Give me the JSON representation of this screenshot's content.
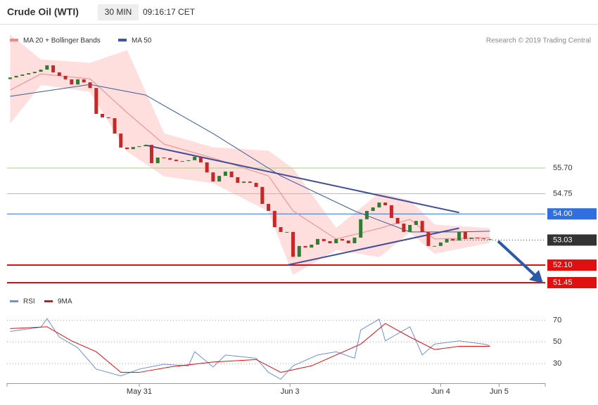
{
  "header": {
    "title": "Crude Oil (WTI)",
    "interval": "30 MIN",
    "time": "09:16:17 CET",
    "credit": "Research © 2019 Trading Central"
  },
  "chart_data": [
    {
      "type": "candlestick",
      "ylim": [
        50.98,
        60.89
      ],
      "xlim": [
        -0.5,
        87
      ],
      "up_color": "#2e7d32",
      "down_color": "#c62828",
      "open": [
        59.0,
        59.06,
        59.12,
        59.17,
        59.22,
        59.27,
        59.35,
        59.51,
        59.25,
        59.12,
        58.99,
        58.8,
        58.99,
        58.88,
        58.67,
        57.71,
        57.58,
        57.55,
        56.98,
        56.46,
        56.4,
        56.48,
        56.51,
        56.56,
        55.88,
        56.09,
        56.07,
        56.01,
        55.96,
        55.96,
        55.99,
        56.12,
        55.91,
        55.54,
        55.2,
        55.41,
        55.57,
        55.36,
        55.15,
        55.2,
        55.15,
        55.0,
        54.37,
        54.11,
        53.51,
        53.33,
        53.33,
        52.41,
        52.81,
        52.75,
        52.86,
        53.07,
        52.99,
        52.91,
        53.07,
        53.01,
        52.91,
        53.12,
        53.8,
        54.11,
        54.24,
        54.42,
        54.32,
        53.85,
        53.64,
        53.33,
        53.59,
        53.74,
        53.33,
        52.81,
        52.81,
        52.94,
        53.07,
        53.01,
        53.33,
        53.07,
        53.12,
        53.09,
        53.07
      ],
      "close": [
        59.06,
        59.12,
        59.17,
        59.22,
        59.27,
        59.35,
        59.51,
        59.25,
        59.12,
        58.99,
        58.8,
        58.99,
        58.88,
        58.67,
        57.71,
        57.58,
        57.55,
        56.98,
        56.46,
        56.4,
        56.48,
        56.51,
        56.56,
        55.88,
        56.09,
        56.07,
        56.01,
        55.96,
        55.96,
        55.99,
        56.12,
        55.91,
        55.54,
        55.2,
        55.41,
        55.57,
        55.36,
        55.15,
        55.2,
        55.15,
        55.0,
        54.37,
        54.11,
        53.51,
        53.33,
        53.33,
        52.41,
        52.81,
        52.75,
        52.86,
        53.07,
        52.99,
        52.91,
        53.07,
        53.01,
        52.91,
        53.12,
        53.8,
        54.11,
        54.24,
        54.42,
        54.32,
        53.85,
        53.64,
        53.33,
        53.59,
        53.74,
        53.33,
        52.81,
        52.81,
        52.94,
        53.07,
        53.01,
        53.33,
        53.07,
        53.12,
        53.09,
        53.07,
        53.07
      ],
      "series": [
        {
          "name": "MA 20 + Bollinger Bands",
          "color": "#ef8a8a",
          "band_color": "#ffdede",
          "x": [
            0,
            5,
            13,
            19,
            25,
            33,
            42,
            46,
            53,
            60,
            65,
            69,
            78
          ],
          "values": [
            58.59,
            59.19,
            59.01,
            57.76,
            56.59,
            56.07,
            55.41,
            54.11,
            53.07,
            53.46,
            53.8,
            53.07,
            53.12
          ],
          "upper": [
            60.63,
            59.72,
            59.59,
            60.06,
            56.98,
            56.46,
            56.33,
            55.67,
            53.46,
            54.76,
            54.5,
            53.59,
            53.46
          ],
          "lower": [
            57.37,
            58.8,
            58.54,
            56.33,
            55.41,
            55.15,
            54.11,
            51.76,
            52.67,
            52.41,
            53.33,
            52.54,
            52.94
          ]
        },
        {
          "name": "MA 50",
          "color": "#3c5a99",
          "x": [
            0,
            13,
            22,
            33,
            44,
            56,
            65,
            73,
            78
          ],
          "values": [
            58.36,
            58.8,
            58.41,
            56.98,
            55.41,
            54.11,
            53.33,
            53.33,
            53.36
          ]
        }
      ],
      "trendline_color": "#3f4f9a",
      "trendlines": [
        {
          "x": [
            22,
            73
          ],
          "values": [
            56.55,
            54.05
          ]
        },
        {
          "x": [
            45,
            73
          ],
          "values": [
            52.1,
            53.47
          ]
        }
      ],
      "levels": [
        {
          "value": 55.7,
          "label": "55.70",
          "color": "#a5d27a",
          "width": 1,
          "box": false
        },
        {
          "value": 54.75,
          "label": "54.75",
          "color": "#a5d27a",
          "width": 1,
          "box": false
        },
        {
          "value": 54,
          "label": "54.00",
          "color": "#2f6fe0",
          "width": 1,
          "box": true
        },
        {
          "value": 53.03,
          "label": "53.03",
          "color": "#333333",
          "width": 1,
          "box": true,
          "dotted": true
        },
        {
          "value": 52.1,
          "label": "52.10",
          "color": "#e01010",
          "width": 2,
          "box": true
        },
        {
          "value": 51.45,
          "label": "51.45",
          "color": "#e01010",
          "width": 2,
          "box": true
        }
      ]
    },
    {
      "type": "line",
      "ylim": [
        12,
        80
      ],
      "xlim": [
        -0.5,
        87
      ],
      "yticks": [
        30,
        50,
        70
      ],
      "grid": true,
      "xticks": [
        {
          "value": 21,
          "label": "May 31"
        },
        {
          "value": 45.5,
          "label": "Jun 3"
        },
        {
          "value": 70,
          "label": "Jun 4"
        },
        {
          "value": 79.5,
          "label": "Jun 5"
        }
      ],
      "series": [
        {
          "name": "RSI",
          "color": "#6d8fdc",
          "x": [
            0,
            5,
            6,
            8,
            10,
            11,
            14,
            18,
            21,
            25,
            29,
            30,
            33,
            35,
            40,
            42,
            44,
            46,
            50,
            53,
            56,
            57,
            60,
            61,
            65,
            67,
            69,
            73,
            77,
            78
          ],
          "values": [
            59.7,
            63.6,
            71.5,
            54.5,
            48,
            44.6,
            25,
            18.7,
            25,
            29.5,
            28,
            41,
            27,
            38,
            35,
            22,
            15.7,
            28,
            38,
            41,
            35,
            61,
            71,
            51,
            64,
            38,
            48,
            51,
            48,
            46.6
          ]
        },
        {
          "name": "9MA",
          "color": "#e01010",
          "x": [
            0,
            6,
            10,
            14,
            18,
            21,
            26,
            33,
            40,
            44,
            49,
            53,
            57,
            61,
            65,
            69,
            73,
            78
          ],
          "values": [
            62.3,
            64,
            51,
            41,
            22,
            22,
            27,
            31.5,
            33.8,
            22,
            28,
            38,
            48,
            67,
            54.5,
            43,
            46,
            46
          ]
        }
      ]
    }
  ]
}
